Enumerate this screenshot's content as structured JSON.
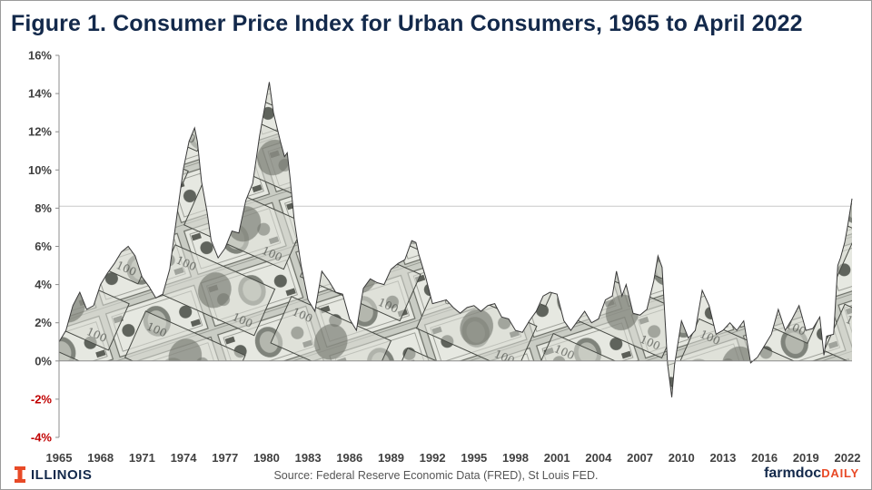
{
  "title": "Figure 1. Consumer Price Index for Urban Consumers, 1965 to April 2022",
  "source": "Source:  Federal Reserve Economic Data (FRED), St Louis FED.",
  "brand_left": "ILLINOIS",
  "brand_right_part1": "farmdoc",
  "brand_right_part2": "DAILY",
  "colors": {
    "title": "#13294b",
    "negative_tick": "#c00000",
    "reference_line": "#c8c8c8",
    "area_outline": "#3a3a3a",
    "brand_orange": "#e84a27",
    "brand_navy": "#13294b"
  },
  "chart_data": {
    "type": "area",
    "title": "Figure 1. Consumer Price Index for Urban Consumers, 1965 to April 2022",
    "xlabel": "",
    "ylabel": "",
    "xlim": [
      1965,
      2022.33
    ],
    "ylim": [
      -4,
      16
    ],
    "y_ticks": [
      "-4%",
      "-2%",
      "0%",
      "2%",
      "4%",
      "6%",
      "8%",
      "10%",
      "12%",
      "14%",
      "16%"
    ],
    "x_ticks": [
      "1965",
      "1968",
      "1971",
      "1974",
      "1977",
      "1980",
      "1983",
      "1986",
      "1989",
      "1992",
      "1995",
      "1998",
      "2001",
      "2004",
      "2007",
      "2010",
      "2013",
      "2016",
      "2019",
      "2022"
    ],
    "reference_line_y": 8.1,
    "grid": false,
    "legend": "none",
    "fill": "photographic dollar-bill texture",
    "series": [
      {
        "values_x": [
          1965,
          1965.5,
          1966,
          1966.5,
          1967,
          1967.5,
          1968,
          1968.5,
          1969,
          1969.5,
          1970,
          1970.5,
          1971,
          1971.5,
          1972,
          1972.5,
          1973,
          1973.5,
          1974,
          1974.4,
          1974.8,
          1975,
          1975.3,
          1975.7,
          1976,
          1976.5,
          1977,
          1977.5,
          1978,
          1978.5,
          1979,
          1979.5,
          1980,
          1980.2,
          1980.5,
          1981,
          1981.3,
          1981.5,
          1981.7,
          1982,
          1982.5,
          1983,
          1983.5,
          1984,
          1984.5,
          1985,
          1985.5,
          1986,
          1986.5,
          1987,
          1987.5,
          1988,
          1988.5,
          1989,
          1989.5,
          1990,
          1990.5,
          1990.8,
          1991,
          1991.5,
          1992,
          1992.5,
          1993,
          1993.5,
          1994,
          1994.5,
          1995,
          1995.5,
          1996,
          1996.5,
          1997,
          1997.5,
          1998,
          1998.5,
          1999,
          1999.5,
          2000,
          2000.5,
          2001,
          2001.5,
          2002,
          2002.5,
          2003,
          2003.5,
          2004,
          2004.5,
          2005,
          2005.3,
          2005.7,
          2006,
          2006.5,
          2007,
          2007.5,
          2008,
          2008.3,
          2008.6,
          2009,
          2009.3,
          2009.5,
          2010,
          2010.5,
          2011,
          2011.5,
          2012,
          2012.5,
          2013,
          2013.5,
          2014,
          2014.5,
          2015,
          2015.5,
          2016,
          2016.5,
          2017,
          2017.5,
          2018,
          2018.5,
          2019,
          2019.5,
          2020,
          2020.3,
          2020.5,
          2021,
          2021.3,
          2021.5,
          2021.8,
          2022,
          2022.2,
          2022.33
        ],
        "values_y": [
          1.0,
          1.6,
          2.9,
          3.6,
          2.7,
          2.9,
          4.0,
          4.6,
          5.1,
          5.7,
          6.0,
          5.5,
          4.4,
          3.9,
          3.3,
          3.5,
          4.8,
          7.5,
          10.1,
          11.5,
          12.2,
          11.5,
          9.4,
          7.8,
          6.3,
          5.4,
          5.9,
          6.8,
          6.7,
          8.4,
          9.3,
          11.8,
          13.8,
          14.6,
          13.0,
          11.5,
          10.7,
          10.9,
          9.6,
          7.4,
          5.0,
          3.2,
          2.6,
          4.7,
          4.2,
          3.6,
          3.5,
          2.2,
          1.6,
          3.8,
          4.3,
          4.1,
          4.0,
          4.8,
          5.1,
          5.3,
          6.3,
          6.2,
          5.6,
          4.4,
          3.0,
          3.1,
          3.2,
          2.8,
          2.5,
          2.8,
          2.9,
          2.6,
          2.9,
          3.0,
          2.3,
          2.2,
          1.6,
          1.5,
          2.1,
          2.6,
          3.4,
          3.6,
          3.5,
          2.1,
          1.6,
          2.1,
          2.6,
          2.0,
          2.2,
          3.2,
          3.4,
          4.7,
          3.4,
          4.0,
          2.5,
          2.4,
          2.7,
          4.2,
          5.5,
          4.9,
          -0.2,
          -1.9,
          -0.2,
          2.1,
          1.2,
          1.6,
          3.7,
          2.9,
          1.4,
          1.6,
          2.0,
          1.6,
          2.1,
          -0.1,
          0.2,
          0.8,
          1.4,
          2.7,
          1.6,
          2.2,
          2.9,
          1.6,
          1.7,
          2.3,
          0.3,
          1.3,
          1.4,
          5.0,
          5.4,
          6.2,
          7.0,
          7.9,
          8.5
        ]
      }
    ]
  }
}
